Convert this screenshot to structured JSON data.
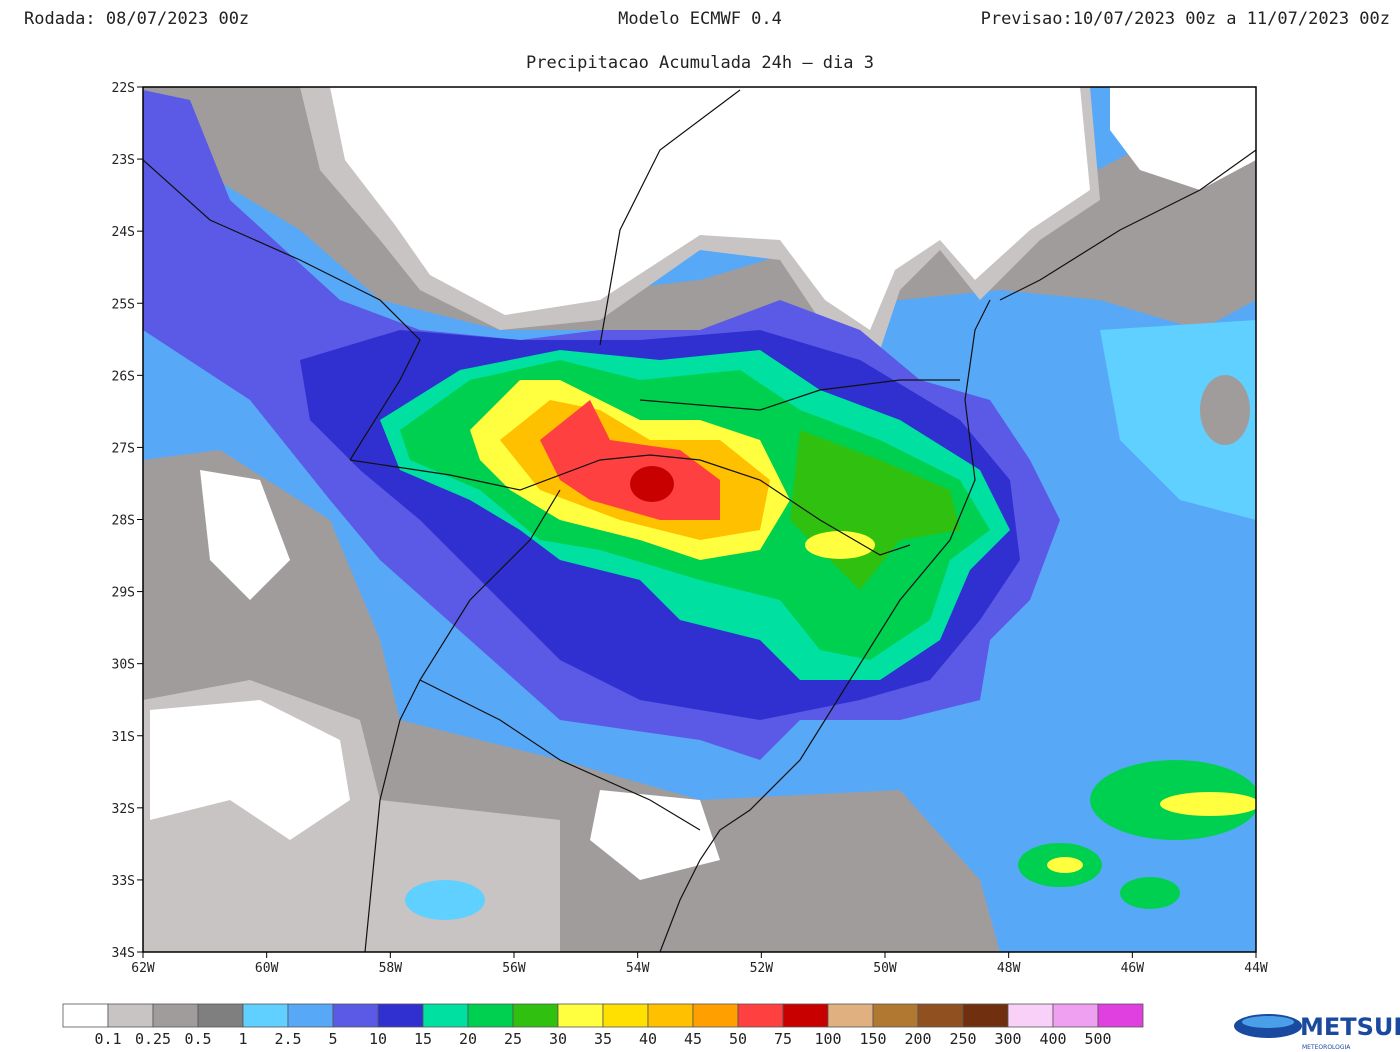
{
  "header": {
    "run": "Rodada: 08/07/2023 00z",
    "model": "Modelo ECMWF 0.4",
    "forecast": "Previsao:10/07/2023 00z a 11/07/2023 00z",
    "subtitle": "Precipitacao Acumulada 24h – dia 3"
  },
  "map": {
    "lat_labels": [
      "22S",
      "23S",
      "24S",
      "25S",
      "26S",
      "27S",
      "28S",
      "29S",
      "30S",
      "31S",
      "32S",
      "33S",
      "34S"
    ],
    "lon_labels": [
      "62W",
      "60W",
      "58W",
      "56W",
      "54W",
      "52W",
      "50W",
      "48W",
      "46W",
      "44W"
    ]
  },
  "legend": {
    "colors": [
      "#ffffff",
      "#c8c4c4",
      "#a09c9c",
      "#7f7f7f",
      "#5fd0ff",
      "#58a8f8",
      "#5a5ae6",
      "#3030d0",
      "#00e0a0",
      "#00d050",
      "#30c010",
      "#ffff40",
      "#ffe000",
      "#ffc000",
      "#ffa000",
      "#ff4040",
      "#c80000",
      "#e0b080",
      "#b07830",
      "#905020",
      "#703010",
      "#f8d0f8",
      "#f0a0f0",
      "#e040e0",
      "#900090"
    ],
    "labels": [
      "0.1",
      "0.25",
      "0.5",
      "1",
      "2.5",
      "5",
      "10",
      "15",
      "20",
      "25",
      "30",
      "35",
      "40",
      "45",
      "50",
      "75",
      "100",
      "150",
      "200",
      "250",
      "300",
      "400",
      "500"
    ]
  },
  "logo": {
    "name": "METSUL",
    "tagline": "METEOROLOGIA"
  }
}
